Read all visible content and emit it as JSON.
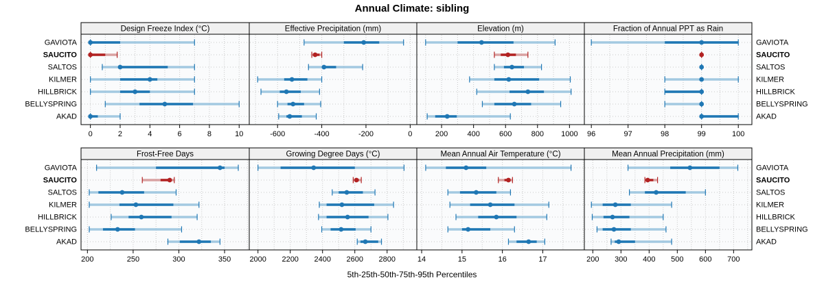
{
  "title": "Annual Climate: sibling",
  "footer_label": "5th-25th-50th-75th-95th Percentiles",
  "stations": [
    {
      "name": "GAVIOTA",
      "highlight": false
    },
    {
      "name": "SAUCITO",
      "highlight": true
    },
    {
      "name": "SALTOS",
      "highlight": false
    },
    {
      "name": "KILMER",
      "highlight": false
    },
    {
      "name": "HILLBRICK",
      "highlight": false
    },
    {
      "name": "BELLYSPRING",
      "highlight": false
    },
    {
      "name": "AKAD",
      "highlight": false
    }
  ],
  "colors": {
    "blue_dark": "#1f77b4",
    "blue_light": "#a3c9e1",
    "red_dark": "#b22222",
    "red_light": "#d9a2a2",
    "grid": "#c8c8c8",
    "panel_bg": "#fafbfc",
    "header_bg": "#f0f0f0",
    "border": "#000000"
  },
  "chart_data": {
    "type": "percentile-interval-dotplot (trellis, 2x4 panels)",
    "percentiles": [
      5,
      25,
      50,
      75,
      95
    ],
    "legend": "light band = 5th-95th, dark band = 25th-75th, dot = 50th; SAUCITO highlighted red",
    "station_order": [
      "GAVIOTA",
      "SAUCITO",
      "SALTOS",
      "KILMER",
      "HILLBRICK",
      "BELLYSPRING",
      "AKAD"
    ],
    "panels": [
      {
        "title": "Design Freeze Index (°C)",
        "row": 0,
        "col": 0,
        "ticks": [
          0,
          2,
          4,
          6,
          8,
          10
        ],
        "range": [
          -0.63,
          10.68
        ],
        "values": [
          [
            0,
            0,
            0,
            2,
            7
          ],
          [
            0,
            0,
            0,
            1,
            1.8
          ],
          [
            0.8,
            2,
            2,
            5.2,
            7
          ],
          [
            0,
            2,
            4,
            4.5,
            7
          ],
          [
            0,
            2,
            3,
            4,
            7
          ],
          [
            1,
            3.3,
            5,
            6.9,
            10
          ],
          [
            0,
            0,
            0,
            0.5,
            2
          ]
        ]
      },
      {
        "title": "Effective Precipitation (mm)",
        "row": 0,
        "col": 1,
        "ticks": [
          -600,
          -400,
          -200,
          0
        ],
        "range": [
          -728,
          30
        ],
        "values": [
          [
            -480,
            -300,
            -210,
            -140,
            -30
          ],
          [
            -445,
            -435,
            -430,
            -410,
            -400
          ],
          [
            -460,
            -395,
            -390,
            -335,
            -215
          ],
          [
            -690,
            -570,
            -535,
            -465,
            -400
          ],
          [
            -675,
            -590,
            -560,
            -495,
            -410
          ],
          [
            -600,
            -555,
            -530,
            -480,
            -405
          ],
          [
            -595,
            -560,
            -545,
            -490,
            -425
          ]
        ]
      },
      {
        "title": "Elevation (m)",
        "row": 0,
        "col": 2,
        "ticks": [
          200,
          400,
          600,
          800,
          1000
        ],
        "range": [
          45,
          1093
        ],
        "values": [
          [
            100,
            300,
            450,
            650,
            910
          ],
          [
            530,
            570,
            615,
            665,
            740
          ],
          [
            530,
            590,
            640,
            715,
            825
          ],
          [
            375,
            530,
            620,
            810,
            1005
          ],
          [
            420,
            625,
            740,
            840,
            1010
          ],
          [
            455,
            530,
            655,
            760,
            945
          ],
          [
            110,
            160,
            235,
            295,
            630
          ]
        ]
      },
      {
        "title": "Fraction of Annual PPT as Rain",
        "row": 0,
        "col": 3,
        "ticks": [
          96,
          97,
          98,
          99,
          100
        ],
        "range": [
          95.81,
          100.37
        ],
        "values": [
          [
            96,
            98,
            99,
            100,
            100
          ],
          [
            99,
            99,
            99,
            99,
            99
          ],
          [
            99,
            99,
            99,
            99,
            99
          ],
          [
            98,
            99,
            99,
            99,
            100
          ],
          [
            98,
            98,
            99,
            99,
            99
          ],
          [
            98,
            99,
            99,
            99,
            99
          ],
          [
            99,
            99,
            99,
            100,
            100
          ]
        ]
      },
      {
        "title": "Frost-Free Days",
        "row": 1,
        "col": 0,
        "ticks": [
          200,
          250,
          300,
          350
        ],
        "range": [
          193,
          377
        ],
        "values": [
          [
            210,
            275,
            345,
            350,
            365
          ],
          [
            260,
            280,
            290,
            292,
            295
          ],
          [
            202,
            212,
            238,
            262,
            297
          ],
          [
            202,
            235,
            253,
            294,
            322
          ],
          [
            226,
            245,
            259,
            292,
            320
          ],
          [
            202,
            217,
            233,
            252,
            303
          ],
          [
            288,
            301,
            322,
            335,
            345
          ]
        ]
      },
      {
        "title": "Growing Degree Days (°C)",
        "row": 1,
        "col": 1,
        "ticks": [
          2000,
          2200,
          2400,
          2600,
          2800
        ],
        "range": [
          1946,
          2984
        ],
        "values": [
          [
            2000,
            2140,
            2345,
            2600,
            2905
          ],
          [
            2590,
            2600,
            2610,
            2625,
            2640
          ],
          [
            2460,
            2500,
            2550,
            2650,
            2725
          ],
          [
            2380,
            2425,
            2520,
            2720,
            2840
          ],
          [
            2375,
            2425,
            2555,
            2685,
            2805
          ],
          [
            2395,
            2450,
            2515,
            2605,
            2700
          ],
          [
            2615,
            2635,
            2665,
            2745,
            2765
          ]
        ]
      },
      {
        "title": "Mean Annual Air Temperature (°C)",
        "row": 1,
        "col": 2,
        "ticks": [
          14,
          15,
          16,
          17
        ],
        "range": [
          13.88,
          18.03
        ],
        "values": [
          [
            14.1,
            14.6,
            15.1,
            15.6,
            17.7
          ],
          [
            15.9,
            16.05,
            16.15,
            16.2,
            16.25
          ],
          [
            14.65,
            14.95,
            15.35,
            15.85,
            16.2
          ],
          [
            14.7,
            15.2,
            15.7,
            16.3,
            17.15
          ],
          [
            14.85,
            15.4,
            15.85,
            16.35,
            17.1
          ],
          [
            14.65,
            15.0,
            15.15,
            15.7,
            16.3
          ],
          [
            16.15,
            16.35,
            16.65,
            16.85,
            17.05
          ]
        ]
      },
      {
        "title": "Mean Annual Precipitation (mm)",
        "row": 1,
        "col": 3,
        "ticks": [
          200,
          300,
          400,
          500,
          600,
          700
        ],
        "range": [
          170,
          765
        ],
        "values": [
          [
            325,
            475,
            545,
            650,
            715
          ],
          [
            385,
            390,
            395,
            415,
            430
          ],
          [
            330,
            385,
            425,
            530,
            600
          ],
          [
            195,
            235,
            280,
            335,
            480
          ],
          [
            198,
            238,
            270,
            330,
            450
          ],
          [
            215,
            235,
            275,
            335,
            460
          ],
          [
            265,
            278,
            292,
            350,
            480
          ]
        ]
      }
    ]
  }
}
